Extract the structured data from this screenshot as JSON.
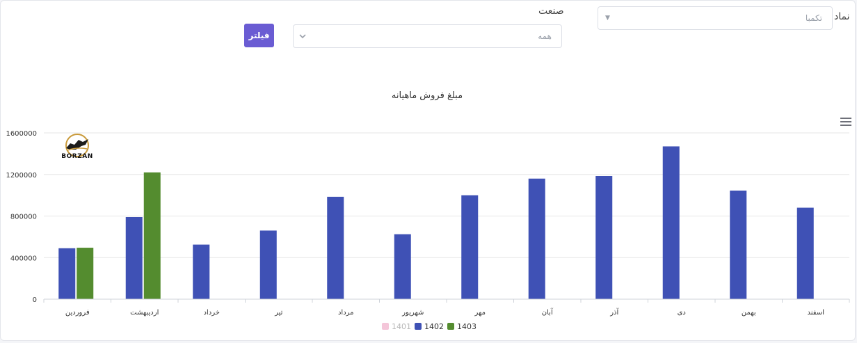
{
  "filters": {
    "symbol_label": "نماد",
    "symbol_value": "تکمبا",
    "industry_label": "صنعت",
    "industry_value": "همه",
    "filter_button": "فیلتر"
  },
  "logo": {
    "text": "BORZAN"
  },
  "colors": {
    "s1401": "#f4c6d9",
    "s1402": "#3f51b5",
    "s1403": "#548c2f",
    "button": "#6a5cd3"
  },
  "chart_data": {
    "type": "bar",
    "title": "مبلغ فروش ماهیانه",
    "categories": [
      "فروردین",
      "اردیبهشت",
      "خرداد",
      "تیر",
      "مرداد",
      "شهریور",
      "مهر",
      "آبان",
      "آذر",
      "دی",
      "بهمن",
      "اسفند"
    ],
    "series": [
      {
        "name": "1401",
        "values": [
          null,
          null,
          null,
          null,
          null,
          null,
          null,
          null,
          null,
          null,
          null,
          null
        ],
        "hidden": true
      },
      {
        "name": "1402",
        "values": [
          490000,
          790000,
          525000,
          660000,
          985000,
          625000,
          1000000,
          1160000,
          1185000,
          1470000,
          1045000,
          880000
        ]
      },
      {
        "name": "1403",
        "values": [
          495000,
          1220000,
          null,
          null,
          null,
          null,
          null,
          null,
          null,
          null,
          null,
          null
        ]
      }
    ],
    "yticks": [
      0,
      400000,
      800000,
      1200000,
      1600000
    ],
    "ylim": [
      0,
      1600000
    ],
    "grid": true,
    "legend": "bottom-center"
  }
}
